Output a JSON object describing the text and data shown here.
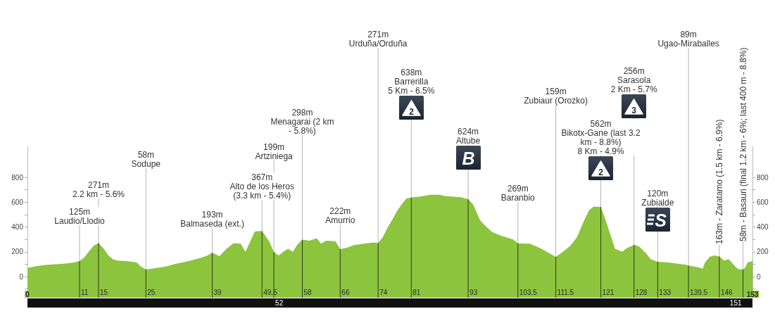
{
  "chart_data": {
    "type": "area",
    "color": "#8cc43e",
    "x": [
      0,
      2,
      4,
      6,
      8,
      10,
      11,
      12,
      13,
      14,
      15,
      16,
      17,
      18,
      19,
      21,
      23,
      24,
      25,
      26.5,
      29,
      31.5,
      34,
      36.5,
      38,
      39,
      40.5,
      42,
      43.5,
      45,
      46,
      48,
      49.5,
      51,
      52,
      53,
      54,
      55,
      56,
      57,
      58,
      59.5,
      61,
      62,
      63,
      65,
      66,
      67.5,
      69,
      71,
      73,
      74,
      75,
      76,
      77,
      78,
      79,
      80,
      81,
      83,
      85,
      87,
      88,
      89.5,
      91.5,
      93,
      94,
      95.5,
      96.5,
      98,
      100,
      102.5,
      103.5,
      106,
      108.5,
      110.5,
      111.5,
      113,
      114.5,
      116,
      117.5,
      118.5,
      119.5,
      121,
      122,
      123,
      124,
      125.5,
      126.5,
      128,
      129,
      130.5,
      131.5,
      133,
      135,
      137,
      139,
      139.5,
      141,
      142.5,
      143,
      144,
      145,
      146,
      147,
      148,
      149.5,
      150,
      151,
      151.5,
      152,
      153
    ],
    "values": [
      70,
      85,
      95,
      100,
      105,
      115,
      125,
      155,
      205,
      250,
      271,
      230,
      175,
      140,
      130,
      125,
      115,
      80,
      58,
      65,
      80,
      105,
      125,
      150,
      170,
      193,
      165,
      225,
      270,
      265,
      200,
      365,
      367,
      285,
      199,
      170,
      200,
      225,
      200,
      260,
      298,
      290,
      310,
      265,
      290,
      285,
      222,
      235,
      255,
      265,
      275,
      271,
      320,
      395,
      460,
      530,
      585,
      630,
      638,
      645,
      660,
      660,
      650,
      645,
      640,
      624,
      585,
      455,
      415,
      360,
      330,
      300,
      269,
      265,
      225,
      180,
      159,
      200,
      245,
      320,
      455,
      535,
      565,
      562,
      455,
      340,
      225,
      200,
      230,
      256,
      245,
      190,
      140,
      120,
      115,
      105,
      95,
      89,
      80,
      65,
      115,
      160,
      170,
      163,
      130,
      140,
      75,
      60,
      58,
      75,
      115,
      125
    ],
    "xlim": [
      0,
      153
    ],
    "xticks": [
      0,
      153
    ],
    "ylim": [
      -170,
      1050
    ],
    "yticks": [
      {
        "value": -100,
        "label": null
      },
      0,
      {
        "value": 100,
        "label": null
      },
      200,
      {
        "value": 300,
        "label": null
      },
      400,
      {
        "value": 500,
        "label": null
      },
      600,
      {
        "value": 700,
        "label": null
      },
      800
    ],
    "y2lim": [
      -170,
      1050
    ],
    "y2ticks": [
      {
        "value": -100,
        "label": null
      },
      0,
      {
        "value": 100,
        "label": null
      },
      200,
      {
        "value": 300,
        "label": null
      },
      400,
      {
        "value": 500,
        "label": null
      },
      600,
      {
        "value": 700,
        "label": null
      },
      800
    ],
    "bands": [
      {
        "axis": "y",
        "from": -170,
        "to": 0,
        "color": "#8cc43e"
      }
    ],
    "ref_lines": [
      {
        "axis": "x",
        "value": 11,
        "label": "11",
        "color": "#2e3d1f"
      },
      {
        "axis": "x",
        "value": 15,
        "label": "15",
        "color": "#2e3d1f"
      },
      {
        "axis": "x",
        "value": 25,
        "label": "25",
        "color": "#2e3d1f"
      },
      {
        "axis": "x",
        "value": 39,
        "label": "39",
        "color": "#2e3d1f"
      },
      {
        "axis": "x",
        "value": 49.5,
        "label": "49.5",
        "color": "#2e3d1f"
      },
      {
        "axis": "x",
        "value": 52,
        "label": "52",
        "color": "#2e3d1f"
      },
      {
        "axis": "x",
        "value": 58,
        "label": "58",
        "color": "#2e3d1f"
      },
      {
        "axis": "x",
        "value": 66,
        "label": "66",
        "color": "#2e3d1f"
      },
      {
        "axis": "x",
        "value": 74,
        "label": "74",
        "color": "#2e3d1f"
      },
      {
        "axis": "x",
        "value": 81,
        "label": "81",
        "color": "#2e3d1f"
      },
      {
        "axis": "x",
        "value": 93,
        "label": "93",
        "color": "#2e3d1f"
      },
      {
        "axis": "x",
        "value": 103.5,
        "label": "103.5",
        "color": "#2e3d1f"
      },
      {
        "axis": "x",
        "value": 111.5,
        "label": "111.5",
        "color": "#2e3d1f"
      },
      {
        "axis": "x",
        "value": 121,
        "label": "121",
        "color": "#2e3d1f"
      },
      {
        "axis": "x",
        "value": 128,
        "label": "128",
        "color": "#2e3d1f"
      },
      {
        "axis": "x",
        "value": 133,
        "label": "133",
        "color": "#2e3d1f"
      },
      {
        "axis": "x",
        "value": 139.5,
        "label": "139.5",
        "color": "#2e3d1f"
      },
      {
        "axis": "x",
        "value": 146,
        "label": "146",
        "color": "#2e3d1f"
      },
      {
        "axis": "x",
        "value": 151,
        "label": "151",
        "color": "#2e3d1f"
      }
    ],
    "annotations": [
      {
        "text": "125m\nLaudio/Llodio",
        "x": 11,
        "y": 125
      },
      {
        "text": "271m\n2.2 km - 5.6%",
        "x": 15,
        "y": 271
      },
      {
        "text": "58m\nSodupe",
        "x": 25,
        "y": 58
      },
      {
        "text": "193m\nBalmaseda (ext.)",
        "x": 39,
        "y": 193
      },
      {
        "text": "367m\nAlto de los Heros\n(3.3 km - 5.4%)",
        "x": 49.5,
        "y": 367
      },
      {
        "text": "199m\nArtziniega",
        "x": 52,
        "y": 199
      },
      {
        "text": "298m\nMenagarai (2 km\n- 5.8%)",
        "x": 58,
        "y": 298
      },
      {
        "text": "222m\nAmurrio",
        "x": 66,
        "y": 222
      },
      "271m\nUrduña/Orduña",
      {
        "text": "638m\nBarrerilla\n5 Km - 6.5%",
        "x": 81,
        "y": 638
      },
      "2",
      {
        "text": "624m\nAltube",
        "x": 93,
        "y": 624
      },
      "B",
      {
        "text": "269m\nBaranbio",
        "x": 103.5,
        "y": 269
      },
      "159m\nZubiaur (Orozko)",
      {
        "text": "562m\nBikotx-Gane (last 3.2\nkm - 8.8%)\n8 Km - 4.9%",
        "x": 121,
        "y": 562
      },
      "2",
      "256m\nSarasola\n2 Km - 5.7%",
      "3",
      {
        "text": "120m\nZubialde",
        "x": 133,
        "y": 120
      },
      "S",
      "89m\nUgao-Miraballes",
      {
        "text": "163m - Zaratamo (1.5 km - 6.9%)",
        "x": 146,
        "y": 163
      },
      {
        "text": "58m - Basauri (final 1.2 km - 6%; last 400 m - 8.8%)",
        "x": 151,
        "y": 58
      }
    ]
  }
}
